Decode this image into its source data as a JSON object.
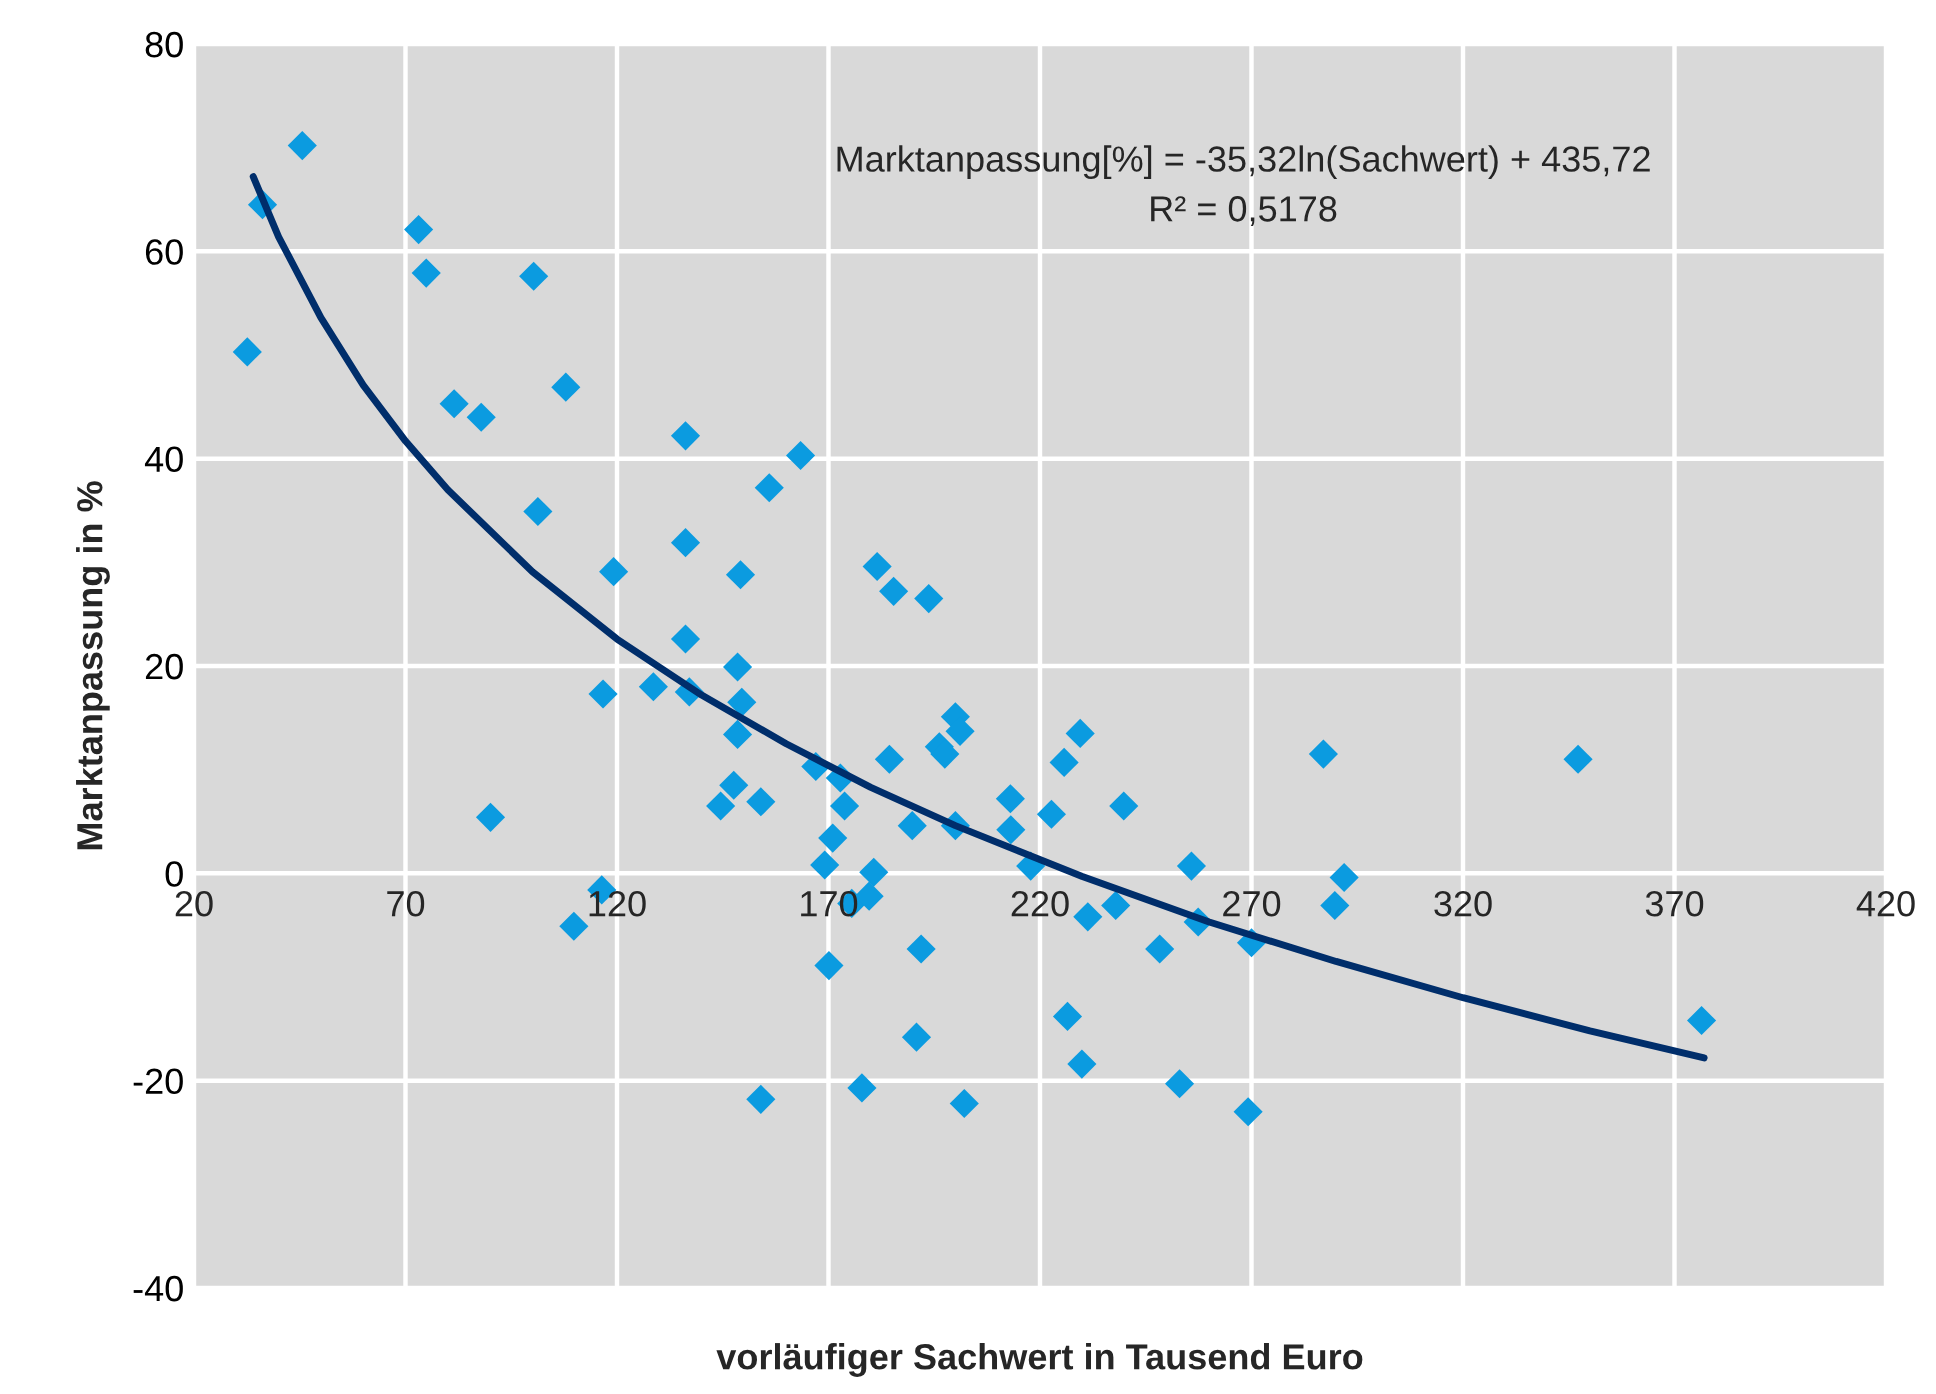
{
  "chart_data": {
    "type": "scatter",
    "xlabel": "vorläufiger Sachwert in Tausend Euro",
    "ylabel": "Marktanpassung in %",
    "xlim": [
      20,
      420
    ],
    "xticks": [
      20,
      70,
      120,
      170,
      220,
      270,
      320,
      370,
      420
    ],
    "ylim": [
      -40,
      80
    ],
    "yticks": [
      -40,
      -20,
      0,
      20,
      40,
      60,
      80
    ],
    "grid": true,
    "marker": "diamond",
    "annotations": [
      "Marktanpassung[%] = -35,32ln(Sachwert) + 435,72",
      "R² = 0,5178"
    ],
    "series": [
      {
        "color": "#0b9be0",
        "x": [
          45.6,
          36.2,
          32.6,
          73.1,
          74.9,
          100.3,
          81.5,
          87.9,
          107.9,
          101.3,
          136.2,
          163.4,
          156,
          119.2,
          136.2,
          149.2,
          136.2,
          116.7,
          128.6,
          137.1,
          148.5,
          149.5,
          148.5,
          90.1,
          147.6,
          144.5,
          154,
          167,
          116.4,
          109.8,
          154,
          181.5,
          185.4,
          193.7,
          200,
          201.1,
          196.2,
          197.5,
          229.5,
          225.7,
          184.4,
          172.8,
          173.8,
          213,
          239.8,
          189.8,
          200,
          213.1,
          222.7,
          171,
          169.1,
          180.7,
          217.8,
          175.5,
          179.6,
          255.8,
          231.3,
          237.9,
          248.3,
          257.4,
          270,
          287,
          291.9,
          289.7,
          191.9,
          170.1,
          190.8,
          226.5,
          229.9,
          177.9,
          202.1,
          253,
          269.2,
          347.2,
          376.4
        ],
        "values": [
          70.2,
          64.5,
          50.3,
          62.1,
          57.9,
          57.6,
          45.3,
          44.0,
          46.9,
          34.9,
          42.2,
          40.3,
          37.2,
          29.1,
          31.9,
          28.8,
          22.6,
          17.3,
          18.0,
          17.5,
          19.9,
          16.5,
          13.4,
          5.4,
          8.5,
          6.5,
          6.9,
          10.3,
          -1.6,
          -5.1,
          -21.8,
          29.6,
          27.2,
          26.5,
          15.1,
          13.7,
          12.2,
          11.5,
          13.5,
          10.7,
          11.0,
          9.2,
          6.5,
          7.2,
          6.5,
          4.6,
          4.6,
          4.2,
          5.7,
          3.4,
          0.8,
          0.1,
          0.7,
          -2.9,
          -2.2,
          0.7,
          -4.2,
          -3.1,
          -7.3,
          -4.7,
          -6.7,
          11.5,
          -0.4,
          -3.1,
          -7.3,
          -8.9,
          -15.8,
          -13.8,
          -18.4,
          -20.7,
          -22.2,
          -20.3,
          -23.0,
          11.0,
          -14.2
        ]
      },
      {
        "type": "line",
        "color": "#002e6b",
        "marker": "none",
        "line_style": "solid",
        "x": [
          34,
          40,
          50,
          60,
          70,
          80,
          100,
          120,
          140,
          160,
          180,
          200,
          230,
          260,
          290,
          320,
          350,
          377
        ],
        "values": [
          67.2,
          61.4,
          53.6,
          47.1,
          41.7,
          37.0,
          29.1,
          22.6,
          17.2,
          12.5,
          8.3,
          4.6,
          -0.3,
          -4.7,
          -8.5,
          -12.0,
          -15.2,
          -17.8
        ]
      }
    ]
  }
}
